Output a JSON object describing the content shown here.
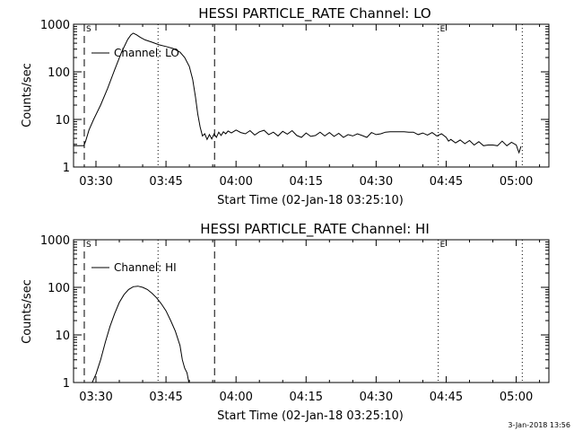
{
  "footer": {
    "timestamp": "3-Jan-2018 13:56"
  },
  "chart_data": [
    {
      "type": "line",
      "title": "HESSI PARTICLE_RATE Channel: LO",
      "ylabel": "Counts/sec",
      "xlabel": "Start Time (02-Jan-18 03:25:10)",
      "y_scale": "log",
      "ylim": [
        1,
        1000
      ],
      "y_ticks": [
        1,
        10,
        100,
        1000
      ],
      "y_tick_labels": [
        "1",
        "10",
        "100",
        "1000"
      ],
      "xlim_min": [
        205.2,
        307.0
      ],
      "x_ticks_min": [
        210,
        225,
        240,
        255,
        270,
        285,
        300
      ],
      "x_tick_labels": [
        "03:30",
        "03:45",
        "04:00",
        "04:15",
        "04:30",
        "04:45",
        "05:00"
      ],
      "legend": "Channel: LO",
      "legend_position": "top-left",
      "markers": [
        {
          "x": 207.5,
          "style": "dashed",
          "label": "S"
        },
        {
          "x": 223.3,
          "style": "dotted",
          "label": ""
        },
        {
          "x": 235.4,
          "style": "dashed",
          "label": ""
        },
        {
          "x": 283.3,
          "style": "dotted",
          "label": "E"
        },
        {
          "x": 301.3,
          "style": "dotted",
          "label": ""
        }
      ],
      "series": [
        {
          "x": [
            205.2,
            207.4,
            207.8,
            208.5,
            209.5,
            211,
            212.5,
            214,
            215.5,
            216.8,
            217.5,
            218,
            218.7,
            219.5,
            220.5,
            222,
            223.5,
            225,
            226.5,
            228,
            229,
            230,
            230.7,
            231.3,
            231.8,
            232.3,
            232.8,
            233.3,
            233.8,
            234.3,
            234.8,
            235.3,
            235.8,
            236.3,
            236.8,
            237.3,
            237.8,
            238.3,
            239,
            240,
            241,
            242,
            243,
            244,
            245,
            246,
            247,
            248,
            249,
            250,
            251,
            252,
            253,
            254,
            255,
            256,
            257,
            258,
            259,
            260,
            261,
            262,
            263,
            264,
            265,
            266,
            267,
            268,
            269,
            270,
            271,
            272,
            273,
            274,
            275,
            276,
            277,
            278,
            279,
            280,
            281,
            282,
            283,
            284,
            285,
            285.5,
            286,
            287,
            288,
            289,
            290,
            291,
            292,
            293,
            294,
            295,
            296,
            297,
            298,
            299,
            300,
            300.3,
            300.6,
            301
          ],
          "values": [
            2.8,
            2.8,
            3.5,
            6,
            10,
            20,
            45,
            110,
            260,
            480,
            600,
            650,
            600,
            530,
            470,
            420,
            370,
            340,
            310,
            260,
            200,
            130,
            70,
            30,
            13,
            7,
            4.5,
            5,
            3.8,
            4.8,
            3.9,
            5,
            4.2,
            5.4,
            4.6,
            5.5,
            5,
            5.7,
            5.2,
            6,
            5.3,
            5,
            5.8,
            4.7,
            5.5,
            5.9,
            4.8,
            5.4,
            4.5,
            5.6,
            4.9,
            5.8,
            4.6,
            4.2,
            5.2,
            4.4,
            4.6,
            5.4,
            4.5,
            5.3,
            4.4,
            5.1,
            4.2,
            4.8,
            4.5,
            5,
            4.6,
            4.2,
            5.3,
            4.8,
            5,
            5.4,
            5.5,
            5.5,
            5.5,
            5.5,
            5.4,
            5.4,
            4.8,
            5.2,
            4.7,
            5.3,
            4.5,
            5,
            4.2,
            3.5,
            3.8,
            3.2,
            3.7,
            3.1,
            3.6,
            2.9,
            3.4,
            2.8,
            2.9,
            2.9,
            2.8,
            3.5,
            2.8,
            3.3,
            2.9,
            2.4,
            2,
            2.7
          ]
        }
      ]
    },
    {
      "type": "line",
      "title": "HESSI PARTICLE_RATE Channel: HI",
      "ylabel": "Counts/sec",
      "xlabel": "Start Time (02-Jan-18 03:25:10)",
      "y_scale": "log",
      "ylim": [
        1,
        1000
      ],
      "y_ticks": [
        1,
        10,
        100,
        1000
      ],
      "y_tick_labels": [
        "1",
        "10",
        "100",
        "1000"
      ],
      "xlim_min": [
        205.2,
        307.0
      ],
      "x_ticks_min": [
        210,
        225,
        240,
        255,
        270,
        285,
        300
      ],
      "x_tick_labels": [
        "03:30",
        "03:45",
        "04:00",
        "04:15",
        "04:30",
        "04:45",
        "05:00"
      ],
      "legend": "Channel: HI",
      "legend_position": "top-left",
      "markers": [
        {
          "x": 207.5,
          "style": "dashed",
          "label": "S"
        },
        {
          "x": 223.3,
          "style": "dotted",
          "label": ""
        },
        {
          "x": 235.4,
          "style": "dashed",
          "label": ""
        },
        {
          "x": 283.3,
          "style": "dotted",
          "label": "E"
        },
        {
          "x": 301.3,
          "style": "dotted",
          "label": ""
        }
      ],
      "series": [
        {
          "x": [
            209.2,
            210,
            211,
            212,
            213,
            214,
            215,
            216,
            217,
            218,
            219,
            220,
            221,
            222,
            223,
            224,
            225,
            226,
            227,
            228,
            228.5,
            229,
            229.5,
            229.9
          ],
          "values": [
            1,
            1.5,
            3,
            7,
            15,
            28,
            48,
            70,
            90,
            103,
            106,
            100,
            90,
            75,
            60,
            45,
            32,
            20,
            12,
            6,
            3,
            2,
            1.6,
            1
          ]
        }
      ]
    }
  ]
}
